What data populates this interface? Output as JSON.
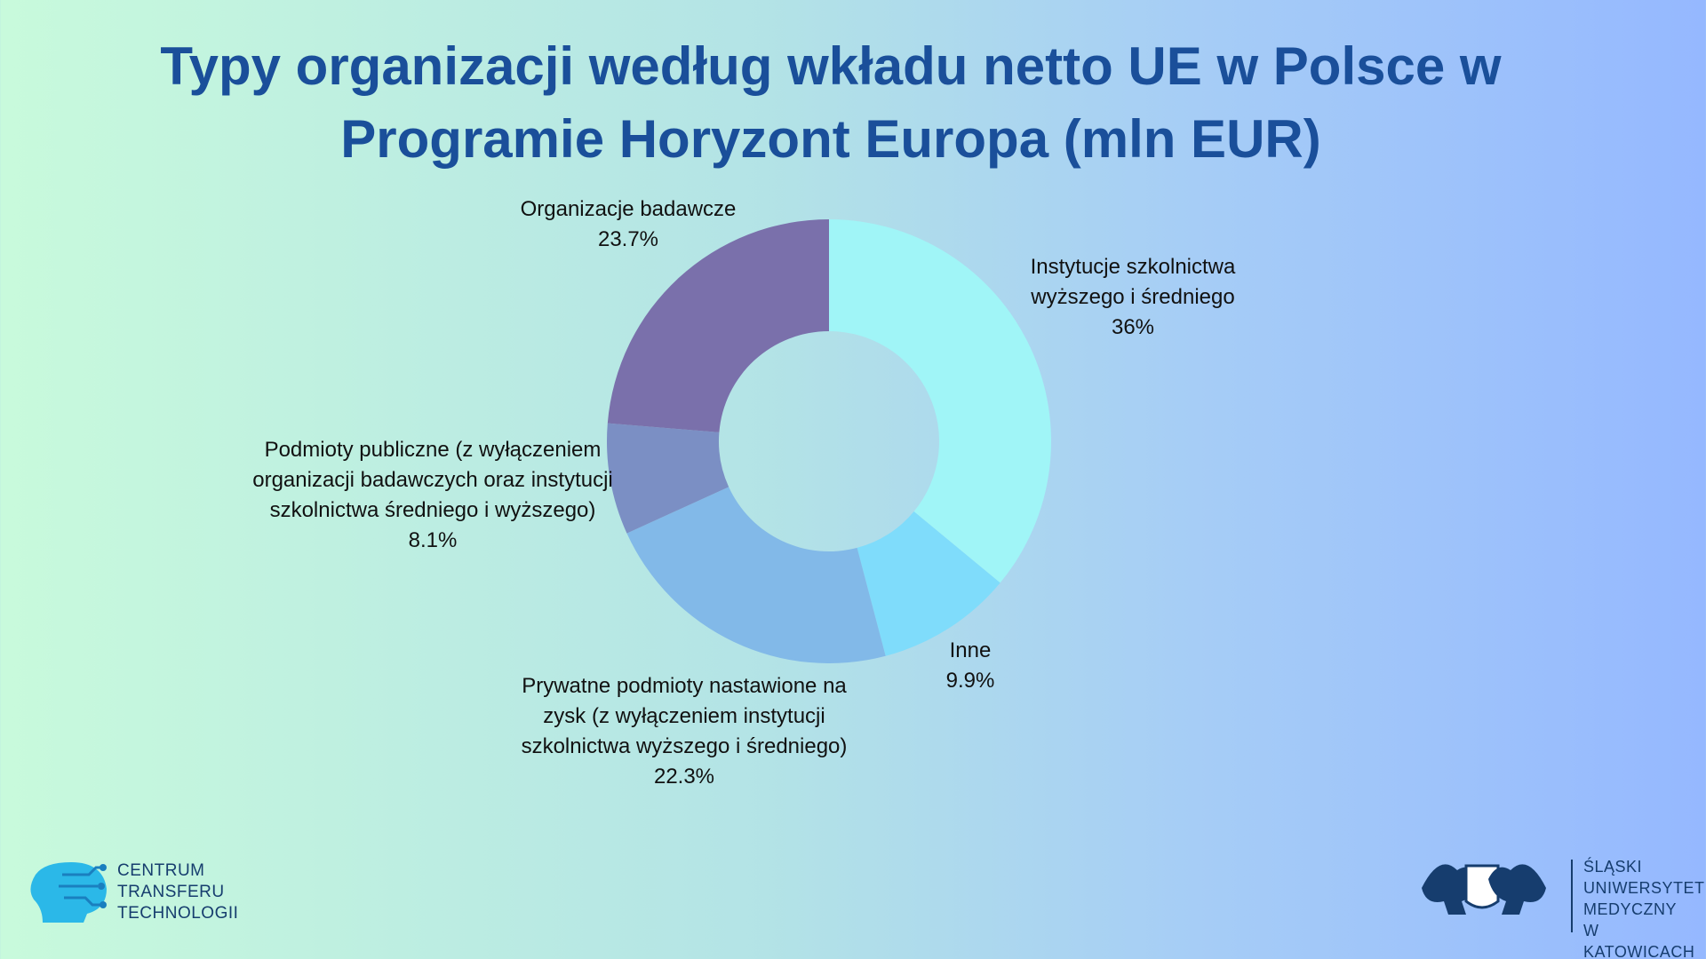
{
  "chart_data": {
    "type": "donut",
    "title": "Typy organizacji według wkładu netto UE w Polsce w Programie Horyzont Europa (mln EUR)",
    "categories": [
      "Instytucje szkolnictwa wyższego i średniego",
      "Inne",
      "Prywatne podmioty nastawione na zysk (z wyłączeniem instytucji szkolnictwa wyższego i średniego)",
      "Podmioty publiczne (z wyłączeniem organizacji badawczych oraz instytucji szkolnictwa średniego i wyższego)",
      "Organizacje badawcze"
    ],
    "values": [
      36,
      9.9,
      22.3,
      8.1,
      23.7
    ],
    "value_labels": [
      "36%",
      "9.9%",
      "22.3%",
      "8.1%",
      "23.7%"
    ],
    "colors": [
      "#a0f5f7",
      "#7fdcfb",
      "#82b9e8",
      "#7b8fc4",
      "#7a70ab"
    ]
  },
  "footer": {
    "left_logo": [
      "CENTRUM",
      "TRANSFERU",
      "TECHNOLOGII"
    ],
    "right_logo": [
      "ŚLĄSKI",
      "UNIWERSYTET",
      "MEDYCZNY",
      "W KATOWICACH"
    ]
  }
}
